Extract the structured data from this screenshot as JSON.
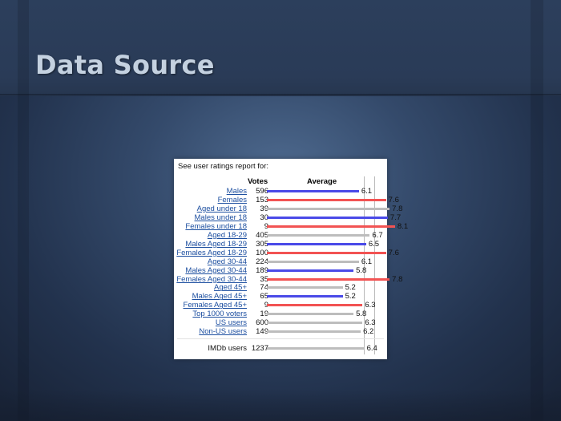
{
  "slide": {
    "title": "Data Source"
  },
  "report": {
    "heading": "See user ratings report for:",
    "votes_header": "Votes",
    "average_header": "Average",
    "colors": {
      "male": "#4a4ae8",
      "female": "#f25353",
      "neutral": "#bdbdbd",
      "link": "#1d4fa0"
    },
    "scale": {
      "min": 1,
      "max": 10
    },
    "rows": [
      {
        "label": "Males",
        "votes": "596",
        "average": 6.1,
        "group": "male"
      },
      {
        "label": "Females",
        "votes": "153",
        "average": 7.6,
        "group": "female"
      },
      {
        "label": "Aged under 18",
        "votes": "39",
        "average": 7.8,
        "group": "neutral"
      },
      {
        "label": "Males under 18",
        "votes": "30",
        "average": 7.7,
        "group": "male"
      },
      {
        "label": "Females under 18",
        "votes": "9",
        "average": 8.1,
        "group": "female"
      },
      {
        "label": "Aged 18-29",
        "votes": "405",
        "average": 6.7,
        "group": "neutral"
      },
      {
        "label": "Males Aged 18-29",
        "votes": "305",
        "average": 6.5,
        "group": "male"
      },
      {
        "label": "Females Aged 18-29",
        "votes": "100",
        "average": 7.6,
        "group": "female"
      },
      {
        "label": "Aged 30-44",
        "votes": "224",
        "average": 6.1,
        "group": "neutral"
      },
      {
        "label": "Males Aged 30-44",
        "votes": "189",
        "average": 5.8,
        "group": "male"
      },
      {
        "label": "Females Aged 30-44",
        "votes": "35",
        "average": 7.8,
        "group": "female"
      },
      {
        "label": "Aged 45+",
        "votes": "74",
        "average": 5.2,
        "group": "neutral"
      },
      {
        "label": "Males Aged 45+",
        "votes": "65",
        "average": 5.2,
        "group": "male"
      },
      {
        "label": "Females Aged 45+",
        "votes": "9",
        "average": 6.3,
        "group": "female"
      },
      {
        "label": "Top 1000 voters",
        "votes": "19",
        "average": 5.8,
        "group": "neutral"
      },
      {
        "label": "US users",
        "votes": "600",
        "average": 6.3,
        "group": "neutral"
      },
      {
        "label": "Non-US users",
        "votes": "149",
        "average": 6.2,
        "group": "neutral"
      }
    ],
    "total": {
      "label": "IMDb users",
      "votes": "1237",
      "average": 6.4,
      "group": "neutral"
    }
  }
}
